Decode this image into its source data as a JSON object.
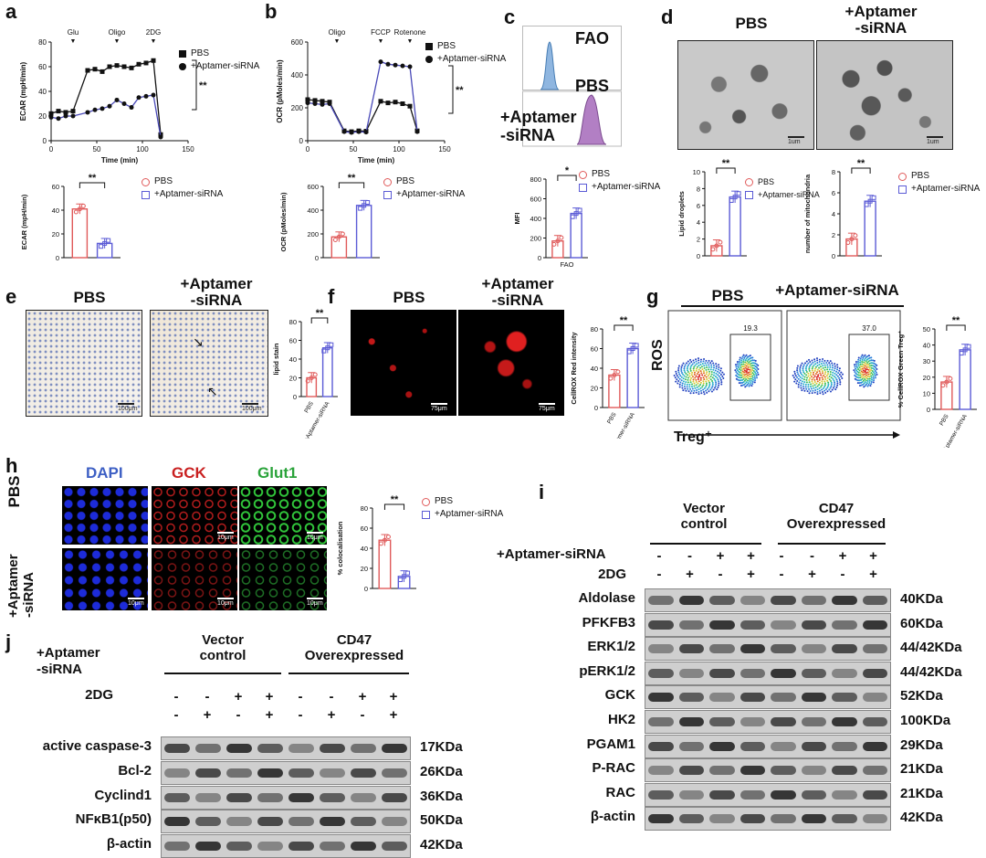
{
  "panels": {
    "a": "a",
    "b": "b",
    "c": "c",
    "d": "d",
    "e": "e",
    "f": "f",
    "g": "g",
    "h": "h",
    "i": "i",
    "j": "j"
  },
  "groups": {
    "pbs": "PBS",
    "aptamer": "+Aptamer-siRNA",
    "aptamer_l1": "+Aptamer",
    "aptamer_l2": "-siRNA"
  },
  "sig": {
    "double": "**",
    "single": "*"
  },
  "panel_a": {
    "ylabel": "ECAR (mpH/min)",
    "xlabel": "Time (min)",
    "markers": [
      "Glu",
      "Oligo",
      "2DG"
    ],
    "bar_ylabel": "ECAR (mpH/min)"
  },
  "panel_b": {
    "ylabel": "OCR (pMoles/min)",
    "xlabel": "Time (min)",
    "markers": [
      "Oligo",
      "FCCP",
      "Rotenone"
    ],
    "bar_ylabel": "OCR (pMoles/min)"
  },
  "panel_c": {
    "fao": "FAO",
    "pbs": "PBS",
    "bar_ylabel": "MFI",
    "bar_xlabel": "FAO"
  },
  "panel_d": {
    "scale": "1um",
    "y1": "Lipid droplets",
    "y2": "number of mitochondria"
  },
  "panel_e": {
    "scale": "100μm",
    "ylabel": "lipid stain"
  },
  "panel_f": {
    "scale": "75μm",
    "ylabel": "CellROX Red intensity"
  },
  "panel_g": {
    "gate1": "19.3",
    "gate2": "37.0",
    "yaxis": "ROS",
    "xaxis": "Treg⁺",
    "ylabel": "% CellROX Green Treg⁺"
  },
  "panel_h": {
    "dapi": "DAPI",
    "gck": "GCK",
    "glut1": "Glut1",
    "scale": "10μm",
    "ylabel": "% colocalisation"
  },
  "panel_i": {
    "vector": "Vector\ncontrol",
    "cd47": "CD47\nOverexpressed",
    "row_aptamer": "+Aptamer-siRNA",
    "row_2dg": "2DG",
    "aptamer_signs": [
      "-",
      "-",
      "+",
      "+",
      "-",
      "-",
      "+",
      "+"
    ],
    "dg_signs": [
      "-",
      "+",
      "-",
      "+",
      "-",
      "+",
      "-",
      "+"
    ],
    "proteins": [
      "Aldolase",
      "PFKFB3",
      "ERK1/2",
      "pERK1/2",
      "GCK",
      "HK2",
      "PGAM1",
      "P-RAC",
      "RAC",
      "β-actin"
    ],
    "kda": [
      "40KDa",
      "60KDa",
      "44/42KDa",
      "44/42KDa",
      "52KDa",
      "100KDa",
      "29KDa",
      "21KDa",
      "21KDa",
      "42KDa"
    ]
  },
  "panel_j": {
    "vector": "Vector\ncontrol",
    "cd47": "CD47\nOverexpressed",
    "row_aptamer_l1": "+Aptamer",
    "row_aptamer_l2": "-siRNA",
    "row_2dg": "2DG",
    "aptamer_signs": [
      "-",
      "-",
      "+",
      "+",
      "-",
      "-",
      "+",
      "+"
    ],
    "dg_signs": [
      "-",
      "+",
      "-",
      "+",
      "-",
      "+",
      "-",
      "+"
    ],
    "proteins": [
      "active caspase-3",
      "Bcl-2",
      "Cyclind1",
      "NFκB1(p50)",
      "β-actin"
    ],
    "kda": [
      "17KDa",
      "26KDa",
      "36KDa",
      "50KDa",
      "42KDa"
    ]
  },
  "chart_data": [
    {
      "panel": "a",
      "type": "line",
      "xlabel": "Time (min)",
      "ylabel": "ECAR (mpH/min)",
      "xlim": [
        0,
        150
      ],
      "ylim": [
        0,
        80
      ],
      "xticks": [
        0,
        50,
        100,
        150
      ],
      "yticks": [
        0,
        20,
        40,
        60,
        80
      ],
      "x": [
        0,
        8,
        16,
        24,
        40,
        48,
        56,
        64,
        72,
        80,
        88,
        96,
        104,
        112,
        120
      ],
      "series": [
        {
          "name": "PBS",
          "values": [
            22,
            24,
            23,
            24,
            57,
            58,
            56,
            60,
            61,
            60,
            59,
            62,
            63,
            65,
            5
          ]
        },
        {
          "name": "+Aptamer-siRNA",
          "values": [
            19,
            18,
            20,
            20,
            23,
            25,
            26,
            28,
            33,
            30,
            27,
            35,
            36,
            37,
            3
          ]
        }
      ]
    },
    {
      "panel": "a",
      "type": "bar",
      "ylabel": "ECAR (mpH/min)",
      "ylim": [
        0,
        60
      ],
      "yticks": [
        0,
        20,
        40,
        60
      ],
      "categories": [
        "PBS",
        "+Aptamer-siRNA"
      ],
      "values": [
        41,
        12
      ]
    },
    {
      "panel": "b",
      "type": "line",
      "xlabel": "Time (min)",
      "ylabel": "OCR (pMoles/min)",
      "xlim": [
        0,
        150
      ],
      "ylim": [
        0,
        600
      ],
      "xticks": [
        0,
        50,
        100,
        150
      ],
      "yticks": [
        0,
        200,
        400,
        600
      ],
      "x": [
        0,
        8,
        16,
        24,
        40,
        48,
        56,
        64,
        80,
        88,
        96,
        104,
        112,
        120
      ],
      "series": [
        {
          "name": "PBS",
          "values": [
            250,
            245,
            240,
            235,
            60,
            55,
            60,
            58,
            240,
            230,
            235,
            225,
            210,
            60
          ]
        },
        {
          "name": "+Aptamer-siRNA",
          "values": [
            230,
            225,
            220,
            225,
            55,
            50,
            55,
            52,
            480,
            465,
            460,
            455,
            450,
            55
          ]
        }
      ]
    },
    {
      "panel": "b",
      "type": "bar",
      "ylabel": "OCR (pMoles/min)",
      "ylim": [
        0,
        600
      ],
      "yticks": [
        0,
        200,
        400,
        600
      ],
      "categories": [
        "PBS",
        "+Aptamer-siRNA"
      ],
      "values": [
        175,
        440
      ]
    },
    {
      "panel": "c",
      "type": "bar",
      "ylabel": "MFI",
      "xlabel": "FAO",
      "ylim": [
        0,
        800
      ],
      "yticks": [
        0,
        200,
        400,
        600,
        800
      ],
      "categories": [
        "PBS",
        "+Aptamer-siRNA"
      ],
      "values": [
        170,
        450
      ]
    },
    {
      "panel": "d",
      "type": "bar",
      "ylabel": "Lipid droplets",
      "ylim": [
        0,
        10
      ],
      "yticks": [
        0,
        2,
        4,
        6,
        8,
        10
      ],
      "categories": [
        "PBS",
        "+Aptamer-siRNA"
      ],
      "values": [
        1.2,
        7.0
      ]
    },
    {
      "panel": "d",
      "type": "bar",
      "ylabel": "number of mitochondria",
      "ylim": [
        0,
        8
      ],
      "yticks": [
        0,
        2,
        4,
        6,
        8
      ],
      "categories": [
        "PBS",
        "+Aptamer-siRNA"
      ],
      "values": [
        1.6,
        5.2
      ]
    },
    {
      "panel": "e",
      "type": "bar",
      "ylabel": "lipid stain",
      "ylim": [
        0,
        80
      ],
      "yticks": [
        0,
        20,
        40,
        60,
        80
      ],
      "categories": [
        "PBS",
        "+Aptamer-siRNA"
      ],
      "values": [
        20,
        52
      ]
    },
    {
      "panel": "f",
      "type": "bar",
      "ylabel": "CellROX Red intensity",
      "ylim": [
        0,
        80
      ],
      "yticks": [
        0,
        20,
        40,
        60,
        80
      ],
      "categories": [
        "PBS",
        "+Aptamer-siRNA"
      ],
      "values": [
        33,
        60
      ]
    },
    {
      "panel": "g",
      "type": "bar",
      "ylabel": "% CellROX Green Treg⁺",
      "ylim": [
        0,
        50
      ],
      "yticks": [
        0,
        10,
        20,
        30,
        40,
        50
      ],
      "categories": [
        "PBS",
        "+Aptamer-siRNA"
      ],
      "values": [
        17,
        37
      ]
    },
    {
      "panel": "h",
      "type": "bar",
      "ylabel": "% colocalisation",
      "ylim": [
        0,
        80
      ],
      "yticks": [
        0,
        20,
        40,
        60,
        80
      ],
      "categories": [
        "PBS",
        "+Aptamer-siRNA"
      ],
      "values": [
        48,
        12
      ]
    }
  ]
}
